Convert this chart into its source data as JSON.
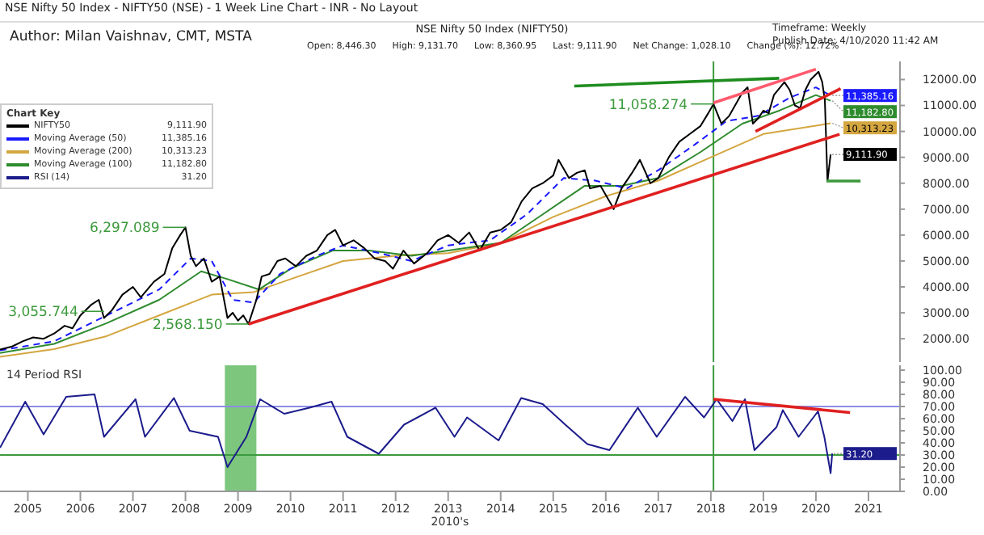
{
  "chart_data": [
    {
      "type": "line",
      "title": "NSE Nifty 50 Index - NIFTY50 (NSE) - 1 Week Line Chart - INR - No Layout",
      "subtitle": "NSE Nifty 50 Index (NIFTY50)",
      "legend_title": "Chart Key",
      "legend": "top left",
      "marker": "none",
      "tick_labels": "y",
      "annotations": [
        "Author: Milan Vaishnav, CMT, MSTA",
        "Open: 8,446.30",
        "High: 9,131.70",
        "Low: 8,360.95",
        "Last: 9,111.90",
        "Net Change: 1,028.10",
        "Change (%): 12.72%",
        "Timeframe: Weekly",
        "Publish Date: 4/10/2020 11:42 AM",
        {
          "text": "6,297.089",
          "x": 2008.0,
          "y": 6297.089
        },
        {
          "text": "3,055.744",
          "x": 2006.45,
          "y": 3055.744
        },
        {
          "text": "2,568.150",
          "x": 2009.2,
          "y": 2568.15
        },
        {
          "text": "11,058.274",
          "x": 2018.05,
          "y": 11058.274
        }
      ],
      "xlim": [
        2004.47,
        2021.6
      ],
      "ylim": [
        1100,
        12700
      ],
      "yticks": [
        {
          "value": 2000,
          "label": "2000.00"
        },
        {
          "value": 3000,
          "label": "3000.00"
        },
        {
          "value": 4000,
          "label": "4000.00"
        },
        {
          "value": 5000,
          "label": "5000.00"
        },
        {
          "value": 6000,
          "label": "6000.00"
        },
        {
          "value": 7000,
          "label": "7000.00"
        },
        {
          "value": 8000,
          "label": "8000.00"
        },
        {
          "value": 9000,
          "label": "9000.00"
        },
        {
          "value": 10000,
          "label": "10000.00"
        },
        {
          "value": 11000,
          "label": "11000.00"
        },
        {
          "value": 12000,
          "label": "12000.00"
        }
      ],
      "ref_lines": [
        {
          "axis": "x",
          "value": 2018.05,
          "color": "#3c9a3c"
        }
      ],
      "series": [
        {
          "type": "line",
          "name": "Moving Average (200)",
          "color": "#d4a640",
          "line_style": "solid",
          "x": [
            2004.47,
            2005.5,
            2006.5,
            2007.5,
            2008.5,
            2009.3,
            2010.0,
            2011.0,
            2012.0,
            2013.0,
            2014.0,
            2015.0,
            2016.0,
            2017.0,
            2018.0,
            2019.0,
            2020.28
          ],
          "values": [
            1300,
            1600,
            2100,
            2900,
            3700,
            3800,
            4300,
            5000,
            5200,
            5300,
            5700,
            6700,
            7500,
            8100,
            9000,
            9900,
            10313.23
          ],
          "value_labels": [
            null,
            null,
            null,
            null,
            null,
            null,
            null,
            null,
            null,
            null,
            null,
            null,
            null,
            null,
            null,
            null,
            "10,313.23"
          ]
        },
        {
          "type": "line",
          "name": "Moving Average (100)",
          "color": "#2e8b2e",
          "line_style": "solid",
          "x": [
            2004.47,
            2005.5,
            2006.5,
            2007.5,
            2008.3,
            2008.8,
            2009.4,
            2010.0,
            2010.8,
            2011.5,
            2012.3,
            2013.0,
            2014.0,
            2014.8,
            2015.6,
            2016.3,
            2017.0,
            2017.8,
            2018.6,
            2019.3,
            2020.0,
            2020.28
          ],
          "values": [
            1450,
            1800,
            2600,
            3500,
            4600,
            4300,
            3900,
            4700,
            5400,
            5400,
            5200,
            5400,
            5700,
            6800,
            7900,
            7900,
            8200,
            9200,
            10300,
            10800,
            11400,
            11182.8
          ],
          "value_labels": [
            null,
            null,
            null,
            null,
            null,
            null,
            null,
            null,
            null,
            null,
            null,
            null,
            null,
            null,
            null,
            null,
            null,
            null,
            null,
            null,
            null,
            "11,182.80"
          ]
        },
        {
          "type": "line",
          "name": "Moving Average (50)",
          "color": "#1a1aff",
          "line_style": "dashed",
          "x": [
            2004.47,
            2005.5,
            2006.5,
            2007.5,
            2008.1,
            2008.5,
            2008.9,
            2009.3,
            2009.8,
            2010.5,
            2011.0,
            2011.7,
            2012.3,
            2013.0,
            2013.8,
            2014.5,
            2015.2,
            2015.8,
            2016.4,
            2017.0,
            2017.7,
            2018.3,
            2018.9,
            2019.5,
            2020.0,
            2020.28
          ],
          "values": [
            1550,
            1900,
            2900,
            3900,
            5100,
            5000,
            3500,
            3400,
            4500,
            5200,
            5600,
            5300,
            5000,
            5600,
            5800,
            6800,
            8200,
            8100,
            7800,
            8500,
            9500,
            10400,
            10600,
            11300,
            11700,
            11385.16
          ],
          "value_labels": [
            null,
            null,
            null,
            null,
            null,
            null,
            null,
            null,
            null,
            null,
            null,
            null,
            null,
            null,
            null,
            null,
            null,
            null,
            null,
            null,
            null,
            null,
            null,
            null,
            null,
            "11,385.16"
          ]
        },
        {
          "type": "line",
          "name": "NIFTY50",
          "color": "#000000",
          "line_style": "solid",
          "x": [
            2004.47,
            2004.7,
            2004.9,
            2005.1,
            2005.3,
            2005.5,
            2005.7,
            2005.85,
            2006.0,
            2006.2,
            2006.35,
            2006.45,
            2006.6,
            2006.8,
            2007.0,
            2007.15,
            2007.4,
            2007.6,
            2007.75,
            2007.9,
            2008.0,
            2008.1,
            2008.2,
            2008.35,
            2008.5,
            2008.65,
            2008.8,
            2008.9,
            2009.0,
            2009.1,
            2009.2,
            2009.35,
            2009.45,
            2009.6,
            2009.75,
            2009.9,
            2010.1,
            2010.3,
            2010.5,
            2010.7,
            2010.85,
            2011.0,
            2011.2,
            2011.4,
            2011.6,
            2011.8,
            2011.95,
            2012.15,
            2012.35,
            2012.6,
            2012.8,
            2013.0,
            2013.2,
            2013.4,
            2013.6,
            2013.8,
            2014.0,
            2014.2,
            2014.4,
            2014.6,
            2014.8,
            2015.0,
            2015.1,
            2015.3,
            2015.45,
            2015.6,
            2015.7,
            2015.9,
            2016.1,
            2016.15,
            2016.3,
            2016.5,
            2016.65,
            2016.85,
            2017.0,
            2017.2,
            2017.4,
            2017.6,
            2017.8,
            2017.95,
            2018.05,
            2018.2,
            2018.35,
            2018.6,
            2018.7,
            2018.8,
            2018.9,
            2019.0,
            2019.1,
            2019.2,
            2019.4,
            2019.5,
            2019.6,
            2019.7,
            2019.8,
            2019.9,
            2020.0,
            2020.05,
            2020.12,
            2020.17,
            2020.22,
            2020.25,
            2020.28
          ],
          "values": [
            1580,
            1700,
            1900,
            2050,
            2000,
            2200,
            2500,
            2400,
            2900,
            3300,
            3500,
            2800,
            3100,
            3700,
            4000,
            3600,
            4200,
            4500,
            5500,
            6000,
            6297.089,
            5200,
            4800,
            5100,
            4200,
            4400,
            2800,
            3000,
            2700,
            2900,
            2568.15,
            3500,
            4400,
            4500,
            5000,
            5100,
            4800,
            5200,
            5400,
            6000,
            6200,
            5600,
            5800,
            5500,
            5100,
            5000,
            4700,
            5400,
            4900,
            5300,
            5800,
            6000,
            5700,
            6100,
            5400,
            6100,
            6200,
            6500,
            7300,
            7800,
            8000,
            8300,
            8900,
            8200,
            8400,
            8500,
            7800,
            7900,
            7200,
            7000,
            7800,
            8400,
            8900,
            8000,
            8200,
            9000,
            9600,
            9900,
            10200,
            10700,
            11058.274,
            10300,
            10600,
            11500,
            11700,
            10300,
            10500,
            10800,
            10700,
            11400,
            11900,
            11600,
            11000,
            10900,
            11600,
            12000,
            12200,
            12300,
            11900,
            11200,
            8083,
            8600,
            9111.9
          ],
          "value_labels": [
            null,
            null,
            null,
            null,
            null,
            null,
            null,
            null,
            null,
            null,
            null,
            null,
            null,
            null,
            null,
            null,
            null,
            null,
            null,
            null,
            null,
            null,
            null,
            null,
            null,
            null,
            null,
            null,
            null,
            null,
            null,
            null,
            null,
            null,
            null,
            null,
            null,
            null,
            null,
            null,
            null,
            null,
            null,
            null,
            null,
            null,
            null,
            null,
            null,
            null,
            null,
            null,
            null,
            null,
            null,
            null,
            null,
            null,
            null,
            null,
            null,
            null,
            null,
            null,
            null,
            null,
            null,
            null,
            null,
            null,
            null,
            null,
            null,
            null,
            null,
            null,
            null,
            null,
            null,
            null,
            null,
            null,
            null,
            null,
            null,
            null,
            null,
            null,
            null,
            null,
            null,
            null,
            null,
            null,
            null,
            null,
            null,
            null,
            null,
            null,
            null,
            null,
            "9,111.90"
          ]
        },
        {
          "type": "line",
          "color": "#e02020",
          "line_style": "solid",
          "x": [
            2009.2,
            2020.45
          ],
          "values": [
            2568.15,
            9890
          ]
        },
        {
          "type": "line",
          "color": "#e02020",
          "line_style": "solid",
          "x": [
            2018.85,
            2020.47
          ],
          "values": [
            10000,
            11650
          ]
        },
        {
          "type": "line",
          "color": "#ff5a6e",
          "line_style": "solid",
          "x": [
            2018.05,
            2020.0
          ],
          "values": [
            11100,
            12400
          ]
        },
        {
          "type": "line",
          "color": "#1e8c1e",
          "line_style": "solid",
          "x": [
            2015.4,
            2019.3
          ],
          "values": [
            11750,
            12050
          ]
        },
        {
          "type": "line",
          "color": "#3c9a3c",
          "line_style": "solid",
          "x": [
            2020.2,
            2020.85
          ],
          "values": [
            8083,
            8083
          ]
        }
      ]
    },
    {
      "type": "line",
      "title": "14 Period RSI",
      "xlabel": "2010's",
      "marker": "none",
      "xlim": [
        2004.47,
        2021.6
      ],
      "ylim": [
        0,
        104
      ],
      "xticks": [
        2005,
        2006,
        2007,
        2008,
        2009,
        2010,
        2011,
        2012,
        2013,
        2014,
        2015,
        2016,
        2017,
        2018,
        2019,
        2020,
        2021
      ],
      "yticks": [
        {
          "value": 0,
          "label": "0.00"
        },
        {
          "value": 10,
          "label": "10.00"
        },
        {
          "value": 20,
          "label": "20.00"
        },
        {
          "value": 30,
          "label": "30.00"
        },
        {
          "value": 40,
          "label": "40.00"
        },
        {
          "value": 50,
          "label": "50.00"
        },
        {
          "value": 60,
          "label": "60.00"
        },
        {
          "value": 70,
          "label": "70.00"
        },
        {
          "value": 80,
          "label": "80.00"
        },
        {
          "value": 90,
          "label": "90.00"
        },
        {
          "value": 100,
          "label": "100.00"
        }
      ],
      "ref_lines": [
        {
          "axis": "y",
          "value": 70,
          "color": "#8c8ce6"
        },
        {
          "axis": "y",
          "value": 30,
          "color": "#3c9a3c"
        },
        {
          "axis": "x",
          "value": 2018.05,
          "color": "#3c9a3c"
        }
      ],
      "bands": [
        {
          "axis": "x",
          "from": 2008.75,
          "to": 2009.35,
          "color": "#5cb85c"
        }
      ],
      "series": [
        {
          "type": "line",
          "name": "RSI (14)",
          "color": "#1c1c8c",
          "line_style": "solid",
          "x": [
            2004.47,
            2004.95,
            2005.3,
            2005.73,
            2006.27,
            2006.45,
            2007.05,
            2007.23,
            2007.78,
            2008.08,
            2008.62,
            2008.8,
            2009.16,
            2009.42,
            2009.88,
            2010.36,
            2010.78,
            2011.08,
            2011.68,
            2012.16,
            2012.76,
            2013.12,
            2013.36,
            2013.96,
            2014.39,
            2014.8,
            2015.23,
            2015.65,
            2016.07,
            2016.61,
            2016.97,
            2017.51,
            2017.87,
            2018.11,
            2018.41,
            2018.65,
            2018.83,
            2019.25,
            2019.37,
            2019.67,
            2020.04,
            2020.16,
            2020.28,
            2020.31
          ],
          "values": [
            36,
            74,
            47,
            78,
            80,
            45,
            76,
            45,
            77,
            50,
            45,
            20,
            45,
            76,
            64,
            69,
            74,
            45,
            31,
            55,
            69,
            45,
            61,
            42,
            77,
            72,
            55,
            39,
            34,
            69,
            45,
            78,
            61,
            76,
            58,
            76,
            34,
            53,
            67,
            45,
            66,
            45,
            15,
            31.2
          ],
          "value_labels": [
            null,
            null,
            null,
            null,
            null,
            null,
            null,
            null,
            null,
            null,
            null,
            null,
            null,
            null,
            null,
            null,
            null,
            null,
            null,
            null,
            null,
            null,
            null,
            null,
            null,
            null,
            null,
            null,
            null,
            null,
            null,
            null,
            null,
            null,
            null,
            null,
            null,
            null,
            null,
            null,
            null,
            null,
            null,
            "31.20"
          ]
        },
        {
          "type": "line",
          "color": "#e02020",
          "line_style": "solid",
          "x": [
            2018.05,
            2020.65
          ],
          "values": [
            76,
            65
          ]
        }
      ]
    }
  ]
}
